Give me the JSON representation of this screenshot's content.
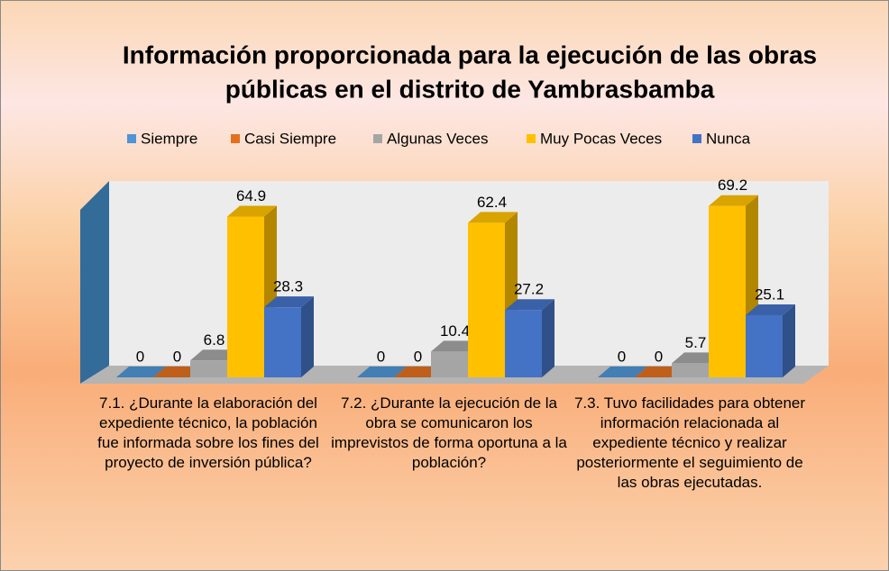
{
  "chart_data": {
    "type": "bar3d",
    "title": "Información proporcionada para la ejecución de las obras públicas en el distrito de Yambrasbamba",
    "categories": [
      "7.1. ¿Durante la elaboración del expediente técnico, la población fue informada sobre los fines del proyecto de inversión pública?",
      "7.2. ¿Durante la ejecución de la obra se comunicaron los imprevistos de forma oportuna a la población?",
      "7.3. Tuvo facilidades para obtener información relacionada al expediente técnico y realizar posteriormente el seguimiento de las obras ejecutadas."
    ],
    "series": [
      {
        "name": "Siempre",
        "color": "#4f94d4",
        "values": [
          0,
          0,
          0
        ]
      },
      {
        "name": "Casi Siempre",
        "color": "#e2701f",
        "values": [
          0,
          0,
          0
        ]
      },
      {
        "name": "Algunas Veces",
        "color": "#a5a5a5",
        "values": [
          6.8,
          10.4,
          5.7
        ]
      },
      {
        "name": "Muy Pocas Veces",
        "color": "#ffc000",
        "values": [
          64.9,
          62.4,
          69.2
        ]
      },
      {
        "name": "Nunca",
        "color": "#4472c4",
        "values": [
          28.3,
          27.2,
          25.1
        ]
      }
    ],
    "legend": "top"
  }
}
